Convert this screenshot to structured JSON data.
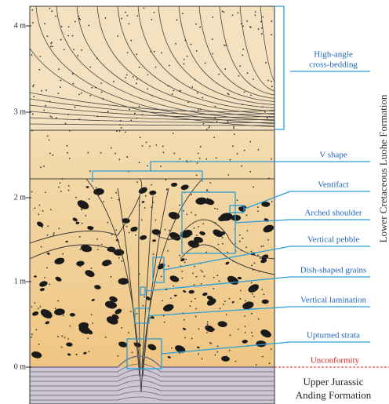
{
  "depth_labels": [
    "4 m",
    "3 m",
    "2 m",
    "1 m",
    "0 m"
  ],
  "annotations": [
    {
      "lines": [
        "High-angle",
        "cross-bedding"
      ]
    },
    {
      "lines": [
        "V shape"
      ]
    },
    {
      "lines": [
        "Ventifact"
      ]
    },
    {
      "lines": [
        "Arched shoulder"
      ]
    },
    {
      "lines": [
        "Vertical pebble"
      ]
    },
    {
      "lines": [
        "Dish-shaped grains"
      ]
    },
    {
      "lines": [
        "Vertical lamination"
      ]
    },
    {
      "lines": [
        "Upturned strata"
      ]
    }
  ],
  "upper_formation": "Lower Cretaceous Luohe Formation",
  "unconformity": "Unconformity",
  "lower_formation": [
    "Upper Jurassic",
    "Anding Formation"
  ]
}
